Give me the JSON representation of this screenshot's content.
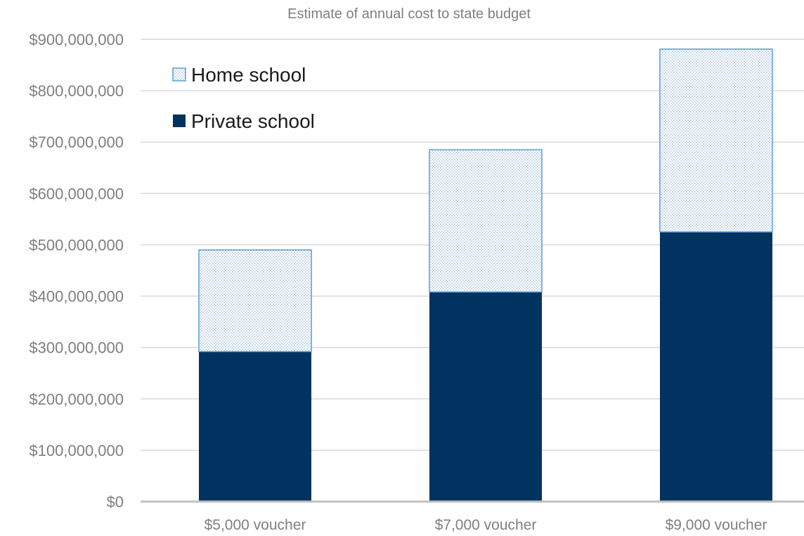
{
  "chart_data": {
    "type": "bar",
    "stacked": true,
    "title": "Estimate of annual cost to state budget",
    "categories": [
      "$5,000 voucher",
      "$7,000 voucher",
      "$9,000 voucher"
    ],
    "series": [
      {
        "name": "Private school",
        "values": [
          292000000,
          408000000,
          525000000
        ],
        "color": "#003360",
        "pattern": "solid"
      },
      {
        "name": "Home school",
        "values": [
          198000000,
          277000000,
          356000000
        ],
        "color": "#5b9bd5",
        "pattern": "dotted"
      }
    ],
    "ylim": [
      0,
      900000000
    ],
    "yticks": [
      0,
      100000000,
      200000000,
      300000000,
      400000000,
      500000000,
      600000000,
      700000000,
      800000000,
      900000000
    ],
    "ytick_labels": [
      "$0",
      "$100,000,000",
      "$200,000,000",
      "$300,000,000",
      "$400,000,000",
      "$500,000,000",
      "$600,000,000",
      "$700,000,000",
      "$800,000,000",
      "$900,000,000"
    ],
    "grid": true,
    "legend": {
      "placement": "top-left",
      "order": [
        "Home school",
        "Private school"
      ]
    }
  }
}
